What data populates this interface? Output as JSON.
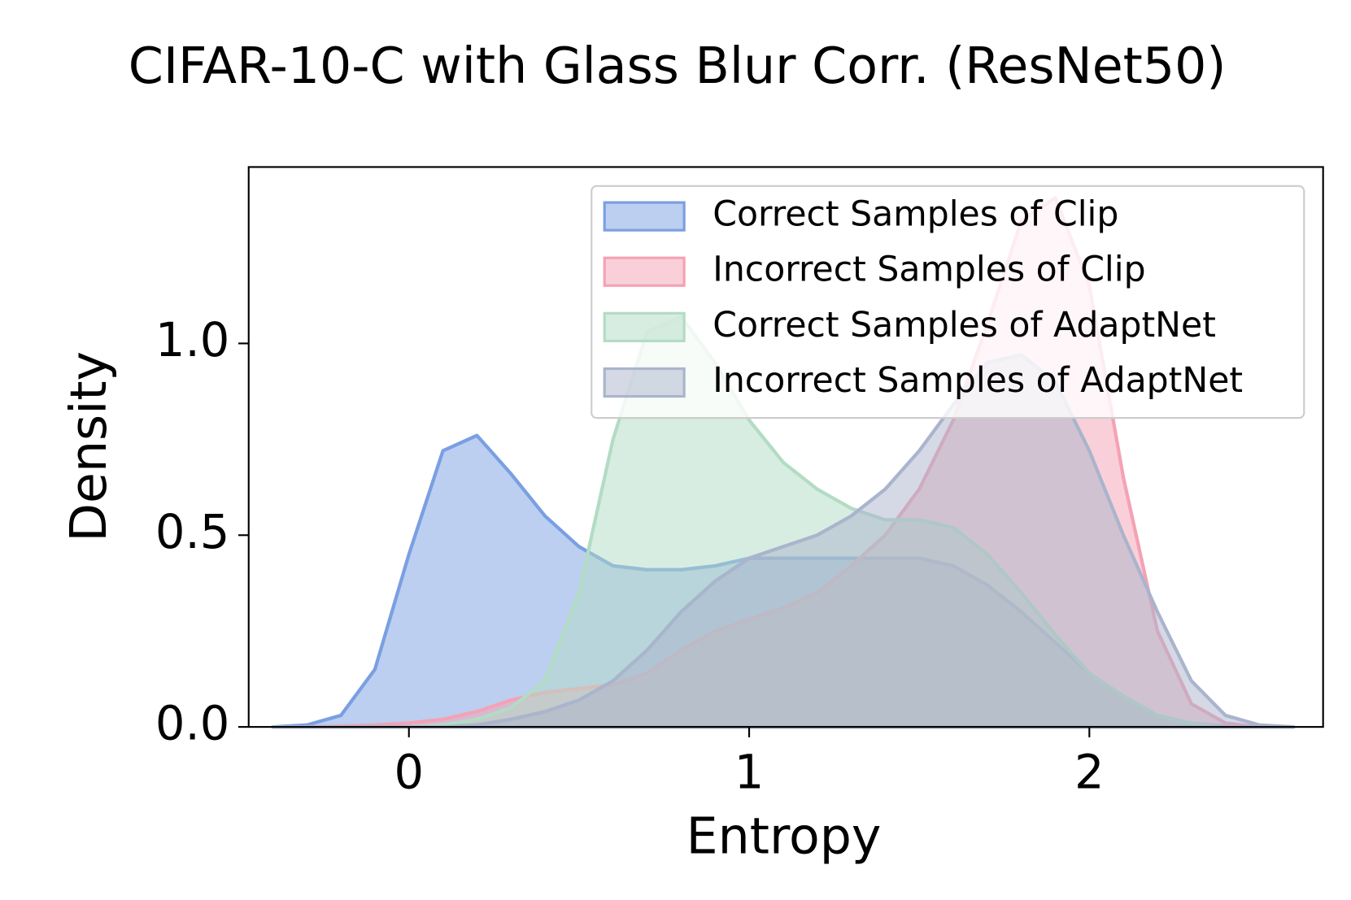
{
  "chart_data": {
    "type": "area",
    "title": "CIFAR-10-C with Glass Blur Corr. (ResNet50)",
    "x_label": "Entropy",
    "y_label": "Density",
    "x": [
      -0.4,
      -0.3,
      -0.2,
      -0.1,
      0,
      0.1,
      0.2,
      0.3,
      0.4,
      0.5,
      0.6,
      0.7,
      0.8,
      0.9,
      1.0,
      1.1,
      1.2,
      1.3,
      1.4,
      1.5,
      1.6,
      1.7,
      1.8,
      1.9,
      2.0,
      2.1,
      2.2,
      2.3,
      2.4,
      2.5,
      2.6
    ],
    "series": [
      {
        "name": "Correct Samples of Clip",
        "color": "#7a9fe2",
        "values": [
          0,
          0.005,
          0.03,
          0.15,
          0.45,
          0.72,
          0.76,
          0.66,
          0.55,
          0.47,
          0.42,
          0.41,
          0.41,
          0.42,
          0.44,
          0.44,
          0.44,
          0.44,
          0.44,
          0.44,
          0.42,
          0.37,
          0.3,
          0.22,
          0.14,
          0.08,
          0.03,
          0.01,
          0.002,
          0,
          0
        ]
      },
      {
        "name": "Incorrect Samples of Clip",
        "color": "#f4a2b4",
        "values": [
          0,
          0,
          0.002,
          0.005,
          0.01,
          0.02,
          0.04,
          0.07,
          0.09,
          0.1,
          0.11,
          0.14,
          0.2,
          0.25,
          0.28,
          0.31,
          0.35,
          0.42,
          0.5,
          0.62,
          0.8,
          1.05,
          1.32,
          1.38,
          1.15,
          0.65,
          0.25,
          0.06,
          0.01,
          0,
          0
        ]
      },
      {
        "name": "Correct Samples of AdaptNet",
        "color": "#b2dcc4",
        "values": [
          0,
          0,
          0,
          0,
          0,
          0.005,
          0.02,
          0.05,
          0.12,
          0.35,
          0.75,
          1.03,
          1.07,
          0.95,
          0.8,
          0.69,
          0.62,
          0.57,
          0.54,
          0.54,
          0.52,
          0.45,
          0.35,
          0.24,
          0.14,
          0.08,
          0.03,
          0.01,
          0,
          0,
          0
        ]
      },
      {
        "name": "Incorrect Samples of AdaptNet",
        "color": "#aab4cc",
        "values": [
          0,
          0,
          0,
          0,
          0,
          0,
          0.005,
          0.02,
          0.04,
          0.07,
          0.12,
          0.2,
          0.3,
          0.38,
          0.44,
          0.47,
          0.5,
          0.55,
          0.62,
          0.72,
          0.84,
          0.95,
          0.97,
          0.9,
          0.72,
          0.5,
          0.3,
          0.12,
          0.03,
          0.005,
          0
        ]
      }
    ],
    "xlim": [
      -0.471,
      2.687
    ],
    "xticks": [
      0,
      1,
      2
    ],
    "ylim": [
      0,
      1.46
    ],
    "yticks": [
      {
        "value": 0,
        "label": "0.0"
      },
      0.5,
      {
        "value": 1,
        "label": "1.0"
      }
    ],
    "legend": "upper right"
  }
}
